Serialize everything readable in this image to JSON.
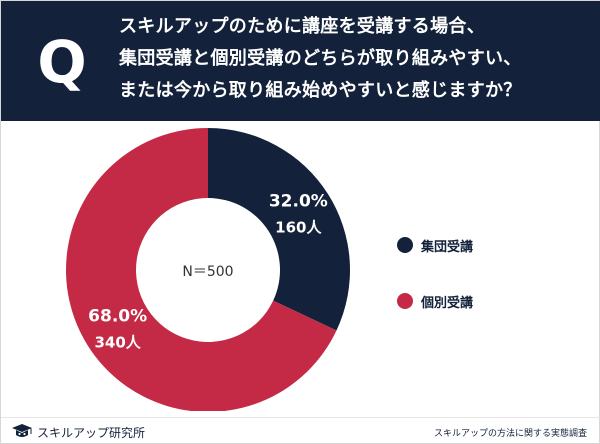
{
  "header": {
    "badge": "Q",
    "question_lines": [
      "スキルアップのために講座を受講する場合、",
      "集団受講と個別受講のどちらが取り組みやすい、",
      "または今から取り組み始めやすいと感じますか？"
    ]
  },
  "chart_data": {
    "type": "pie",
    "donut": true,
    "center_label": "N＝500",
    "series": [
      {
        "name": "集団受講",
        "percent": 32.0,
        "count": 160,
        "percent_label": "32.0%",
        "count_label": "160人",
        "color": "#13223a"
      },
      {
        "name": "個別受講",
        "percent": 68.0,
        "count": 340,
        "percent_label": "68.0%",
        "count_label": "340人",
        "color": "#c42a45"
      }
    ],
    "legend_placement": "right"
  },
  "footer": {
    "logo_text": "スキルアップ研究所",
    "source": "スキルアップの方法に関する実態調査"
  },
  "colors": {
    "header_bg": "#13223a",
    "navy": "#13223a",
    "crimson": "#c42a45"
  }
}
